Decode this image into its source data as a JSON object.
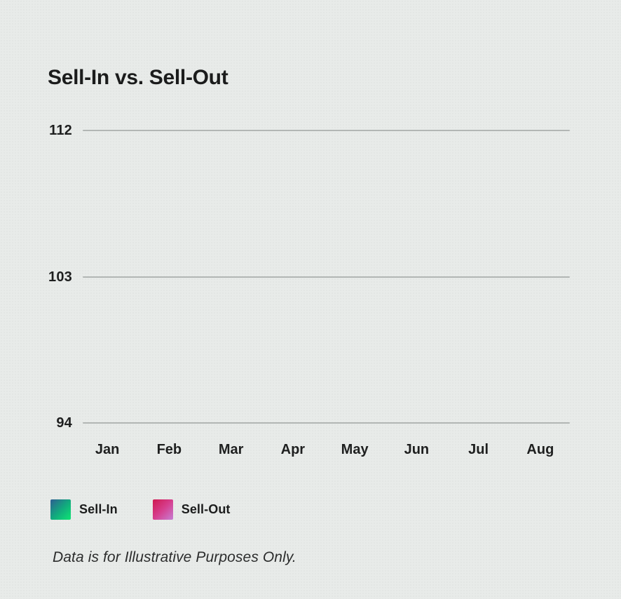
{
  "title": "Sell-In vs. Sell-Out",
  "footer": "Data is for Illustrative Purposes Only.",
  "colors": {
    "background": "#e8ebe9",
    "text": "#1b1c1c",
    "gridline": "#b2b6b4",
    "series_gradients": [
      [
        "#2e5e92",
        "#12a87e",
        "#0ee573"
      ],
      [
        "#cf1950",
        "#d63f8e",
        "#c77fd4"
      ]
    ]
  },
  "chart_data": {
    "type": "line",
    "title": "Sell-In vs. Sell-Out",
    "categories": [
      "Jan",
      "Feb",
      "Mar",
      "Apr",
      "May",
      "Jun",
      "Jul",
      "Aug"
    ],
    "y_ticks": [
      112,
      103,
      94
    ],
    "ylim": [
      94,
      112
    ],
    "grid": "horizontal-only",
    "legend_position": "bottom-left",
    "plot_area_empty": true,
    "series": [
      {
        "name": "Sell-In",
        "values": []
      },
      {
        "name": "Sell-Out",
        "values": []
      }
    ]
  }
}
